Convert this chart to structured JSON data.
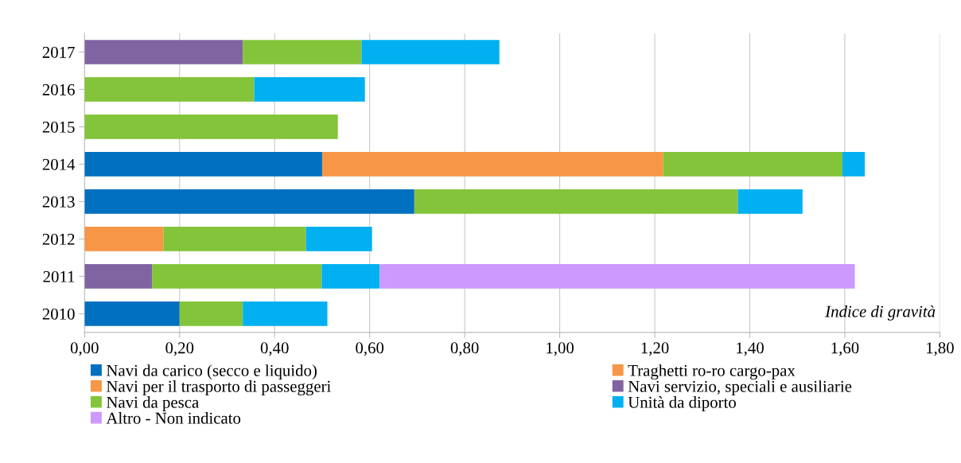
{
  "chart_data": {
    "type": "bar",
    "orientation": "horizontal",
    "stacked": true,
    "categories": [
      "2017",
      "2016",
      "2015",
      "2014",
      "2013",
      "2012",
      "2011",
      "2010"
    ],
    "series": [
      {
        "name": "Navi da carico (secco e liquido)",
        "color": "#0070c0",
        "values": [
          null,
          null,
          null,
          0.5,
          0.694,
          null,
          null,
          0.2
        ]
      },
      {
        "name": "Traghetti ro-ro cargo-pax",
        "color": "#f79646",
        "values": [
          null,
          null,
          null,
          0.718,
          null,
          null,
          null,
          null
        ]
      },
      {
        "name": "Navi per il trasporto di passeggeri",
        "color": "#f79646",
        "values": [
          null,
          null,
          null,
          null,
          null,
          0.166,
          null,
          null
        ]
      },
      {
        "name": "Navi servizio, speciali e ausiliarie",
        "color": "#8064a2",
        "values": [
          0.333,
          null,
          null,
          null,
          null,
          null,
          0.142,
          null
        ]
      },
      {
        "name": "Navi da pesca",
        "color": "#83c43a",
        "values": [
          0.25,
          0.357,
          0.533,
          0.377,
          0.681,
          0.3,
          0.357,
          0.133
        ]
      },
      {
        "name": "Unità da diporto",
        "color": "#00b0f0",
        "values": [
          0.29,
          0.233,
          null,
          0.047,
          0.136,
          0.139,
          0.122,
          0.178
        ]
      },
      {
        "name": "Altro - Non indicato",
        "color": "#cc99ff",
        "values": [
          null,
          null,
          null,
          null,
          null,
          null,
          1.0,
          null
        ]
      }
    ],
    "xlim": [
      0,
      1.8
    ],
    "xticks": [
      {
        "value": 0,
        "label": "0,00"
      },
      {
        "value": 0.2,
        "label": "0,20"
      },
      {
        "value": 0.4,
        "label": "0,40"
      },
      {
        "value": 0.6,
        "label": "0,60"
      },
      {
        "value": 0.8,
        "label": "0,80"
      },
      {
        "value": 1.0,
        "label": "1,00"
      },
      {
        "value": 1.2,
        "label": "1,20"
      },
      {
        "value": 1.4,
        "label": "1,40"
      },
      {
        "value": 1.6,
        "label": "1,60"
      },
      {
        "value": 1.8,
        "label": "1,80"
      }
    ],
    "grid": "x",
    "legend": "bottom",
    "annotations": [
      "Indice di gravità"
    ]
  }
}
